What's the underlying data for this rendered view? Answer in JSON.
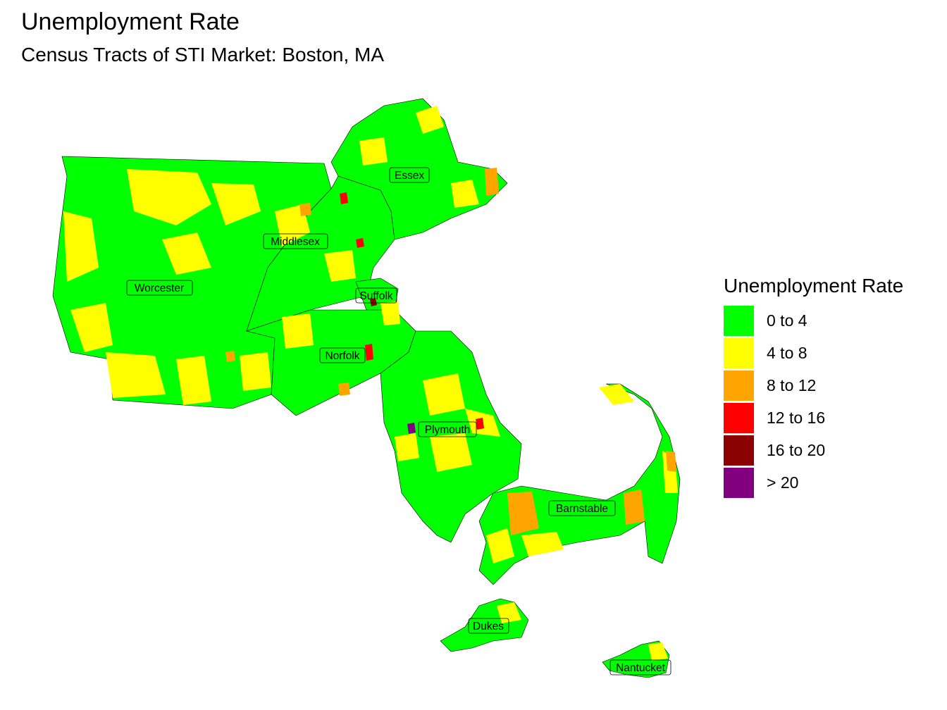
{
  "header": {
    "title": "Unemployment Rate",
    "subtitle": "Census Tracts of STI Market: Boston, MA"
  },
  "legend": {
    "title": "Unemployment Rate",
    "items": [
      {
        "label": "0 to 4",
        "color": "#00FF00"
      },
      {
        "label": "4 to 8",
        "color": "#FFFF00"
      },
      {
        "label": "8 to 12",
        "color": "#FFA500"
      },
      {
        "label": "12 to 16",
        "color": "#FF0000"
      },
      {
        "label": "16 to 20",
        "color": "#8B0000"
      },
      {
        "label": "> 20",
        "color": "#800080"
      }
    ]
  },
  "counties": [
    {
      "name": "Essex"
    },
    {
      "name": "Middlesex"
    },
    {
      "name": "Worcester"
    },
    {
      "name": "Suffolk"
    },
    {
      "name": "Norfolk"
    },
    {
      "name": "Plymouth"
    },
    {
      "name": "Barnstable"
    },
    {
      "name": "Dukes"
    },
    {
      "name": "Nantucket"
    }
  ]
}
